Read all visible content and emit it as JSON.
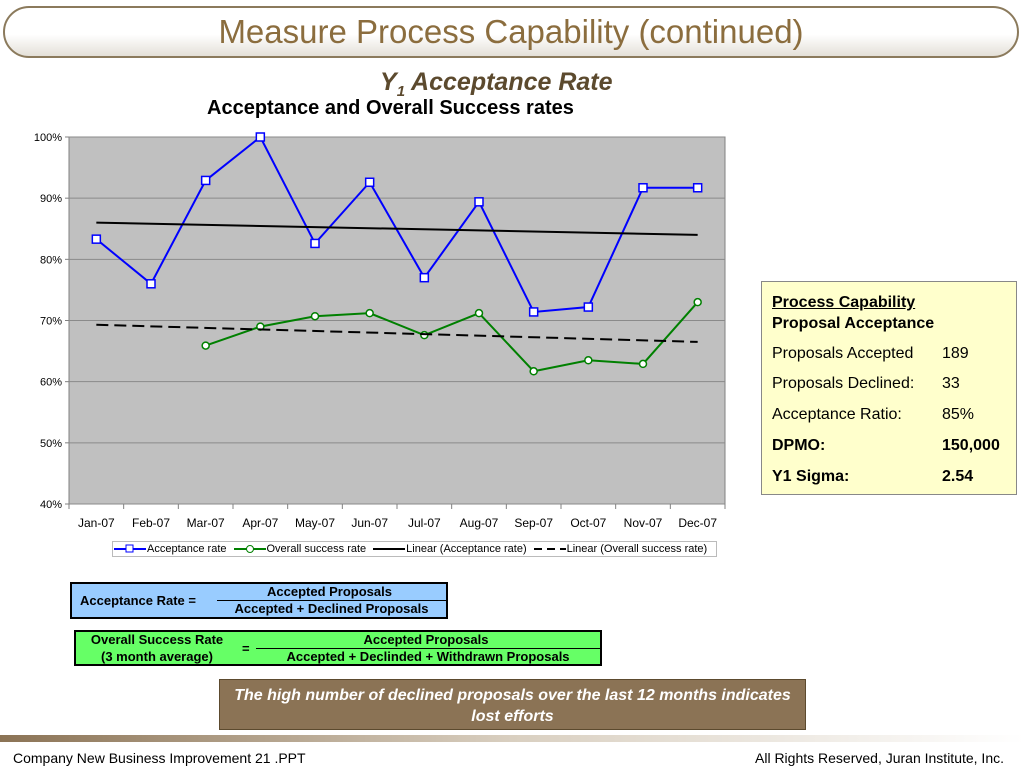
{
  "slide": {
    "title": "Measure Process Capability (continued)",
    "subtitle_main": "Y",
    "subtitle_sub": "1",
    "subtitle_rest": " Acceptance Rate"
  },
  "chart_data": {
    "type": "line",
    "title": "Acceptance and Overall Success rates",
    "categories": [
      "Jan-07",
      "Feb-07",
      "Mar-07",
      "Apr-07",
      "May-07",
      "Jun-07",
      "Jul-07",
      "Aug-07",
      "Sep-07",
      "Oct-07",
      "Nov-07",
      "Dec-07"
    ],
    "y_ticks": [
      "100%",
      "90%",
      "80%",
      "70%",
      "60%",
      "50%",
      "40%"
    ],
    "ylim": [
      40,
      100
    ],
    "grid": true,
    "plot_background": "#c0c0c0",
    "legend_position": "bottom",
    "series": [
      {
        "name": "Acceptance rate",
        "color": "#0000ff",
        "marker": "square",
        "values": [
          83.3,
          76.0,
          92.9,
          100.0,
          82.6,
          92.6,
          77.0,
          89.4,
          71.4,
          72.2,
          91.7,
          91.7
        ]
      },
      {
        "name": "Overall success rate",
        "color": "#008000",
        "marker": "circle",
        "values": [
          null,
          null,
          65.9,
          69.0,
          70.7,
          71.2,
          67.6,
          71.2,
          61.7,
          63.5,
          62.9,
          73.0
        ]
      },
      {
        "name": "Linear (Acceptance rate)",
        "color": "#000000",
        "style": "solid",
        "values": [
          86.0,
          null,
          null,
          null,
          null,
          null,
          null,
          null,
          null,
          null,
          null,
          84.0
        ]
      },
      {
        "name": "Linear (Overall success rate)",
        "color": "#000000",
        "style": "dashed",
        "values": [
          69.3,
          null,
          null,
          null,
          null,
          null,
          null,
          null,
          null,
          null,
          null,
          66.5
        ]
      }
    ]
  },
  "info_box": {
    "heading1": "Process Capability",
    "heading2": "Proposal Acceptance",
    "rows": [
      {
        "label": "Proposals Accepted",
        "value": "189"
      },
      {
        "label": "Proposals Declined:",
        "value": "33"
      },
      {
        "label": "Acceptance Ratio:",
        "value": "85%"
      },
      {
        "label": "DPMO:",
        "value": "150,000"
      },
      {
        "label": "Y1 Sigma:",
        "value": "2.54"
      }
    ]
  },
  "formula1": {
    "label": "Acceptance Rate =",
    "numerator": "Accepted Proposals",
    "denominator": "Accepted + Declined Proposals"
  },
  "formula2": {
    "label1": "Overall Success Rate",
    "label2": "(3 month average)",
    "equals": "=",
    "numerator": "Accepted Proposals",
    "denominator": "Accepted + Declinded + Withdrawn Proposals"
  },
  "callout": "The high number of declined proposals over the last 12 months indicates lost efforts",
  "footer": {
    "left": "Company New Business Improvement 21 .PPT",
    "right": "All Rights Reserved, Juran Institute, Inc."
  }
}
